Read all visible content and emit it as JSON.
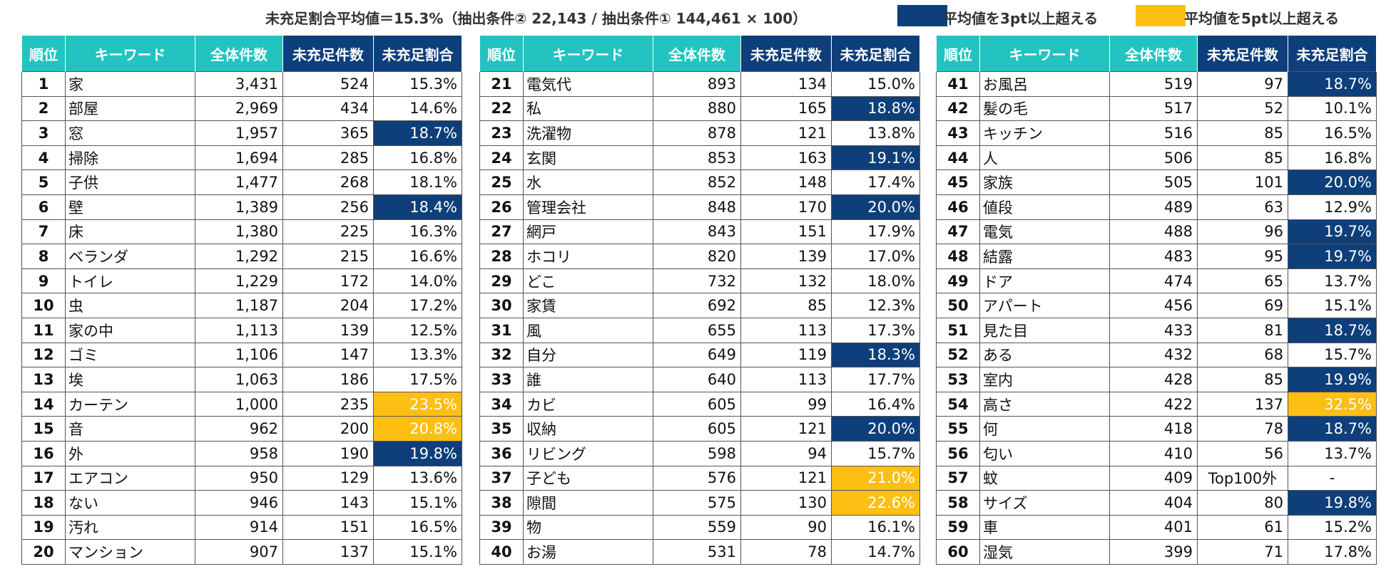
{
  "header": {
    "summary": "未充足割合平均値＝15.3%（抽出条件② 22,143 / 抽出条件① 144,461 × 100）",
    "legend": [
      {
        "label": "平均値を3pt以上超える",
        "color": "#0e3f7a"
      },
      {
        "label": "平均値を5pt以上超える",
        "color": "#fdbf13"
      }
    ]
  },
  "columns": [
    "順位",
    "キーワード",
    "全体件数",
    "未充足件数",
    "未充足割合"
  ],
  "tables": [
    {
      "rows": [
        {
          "rank": "1",
          "keyword": "家",
          "total": "3,431",
          "unmet": "524",
          "rate": "15.3%",
          "hl": ""
        },
        {
          "rank": "2",
          "keyword": "部屋",
          "total": "2,969",
          "unmet": "434",
          "rate": "14.6%",
          "hl": ""
        },
        {
          "rank": "3",
          "keyword": "窓",
          "total": "1,957",
          "unmet": "365",
          "rate": "18.7%",
          "hl": "blue"
        },
        {
          "rank": "4",
          "keyword": "掃除",
          "total": "1,694",
          "unmet": "285",
          "rate": "16.8%",
          "hl": ""
        },
        {
          "rank": "5",
          "keyword": "子供",
          "total": "1,477",
          "unmet": "268",
          "rate": "18.1%",
          "hl": ""
        },
        {
          "rank": "6",
          "keyword": "壁",
          "total": "1,389",
          "unmet": "256",
          "rate": "18.4%",
          "hl": "blue"
        },
        {
          "rank": "7",
          "keyword": "床",
          "total": "1,380",
          "unmet": "225",
          "rate": "16.3%",
          "hl": ""
        },
        {
          "rank": "8",
          "keyword": "ベランダ",
          "total": "1,292",
          "unmet": "215",
          "rate": "16.6%",
          "hl": ""
        },
        {
          "rank": "9",
          "keyword": "トイレ",
          "total": "1,229",
          "unmet": "172",
          "rate": "14.0%",
          "hl": ""
        },
        {
          "rank": "10",
          "keyword": "虫",
          "total": "1,187",
          "unmet": "204",
          "rate": "17.2%",
          "hl": ""
        },
        {
          "rank": "11",
          "keyword": "家の中",
          "total": "1,113",
          "unmet": "139",
          "rate": "12.5%",
          "hl": ""
        },
        {
          "rank": "12",
          "keyword": "ゴミ",
          "total": "1,106",
          "unmet": "147",
          "rate": "13.3%",
          "hl": ""
        },
        {
          "rank": "13",
          "keyword": "埃",
          "total": "1,063",
          "unmet": "186",
          "rate": "17.5%",
          "hl": ""
        },
        {
          "rank": "14",
          "keyword": "カーテン",
          "total": "1,000",
          "unmet": "235",
          "rate": "23.5%",
          "hl": "yellow"
        },
        {
          "rank": "15",
          "keyword": "音",
          "total": "962",
          "unmet": "200",
          "rate": "20.8%",
          "hl": "yellow"
        },
        {
          "rank": "16",
          "keyword": "外",
          "total": "958",
          "unmet": "190",
          "rate": "19.8%",
          "hl": "blue"
        },
        {
          "rank": "17",
          "keyword": "エアコン",
          "total": "950",
          "unmet": "129",
          "rate": "13.6%",
          "hl": ""
        },
        {
          "rank": "18",
          "keyword": "ない",
          "total": "946",
          "unmet": "143",
          "rate": "15.1%",
          "hl": ""
        },
        {
          "rank": "19",
          "keyword": "汚れ",
          "total": "914",
          "unmet": "151",
          "rate": "16.5%",
          "hl": ""
        },
        {
          "rank": "20",
          "keyword": "マンション",
          "total": "907",
          "unmet": "137",
          "rate": "15.1%",
          "hl": ""
        }
      ]
    },
    {
      "rows": [
        {
          "rank": "21",
          "keyword": "電気代",
          "total": "893",
          "unmet": "134",
          "rate": "15.0%",
          "hl": ""
        },
        {
          "rank": "22",
          "keyword": "私",
          "total": "880",
          "unmet": "165",
          "rate": "18.8%",
          "hl": "blue"
        },
        {
          "rank": "23",
          "keyword": "洗濯物",
          "total": "878",
          "unmet": "121",
          "rate": "13.8%",
          "hl": ""
        },
        {
          "rank": "24",
          "keyword": "玄関",
          "total": "853",
          "unmet": "163",
          "rate": "19.1%",
          "hl": "blue"
        },
        {
          "rank": "25",
          "keyword": "水",
          "total": "852",
          "unmet": "148",
          "rate": "17.4%",
          "hl": ""
        },
        {
          "rank": "26",
          "keyword": "管理会社",
          "total": "848",
          "unmet": "170",
          "rate": "20.0%",
          "hl": "blue"
        },
        {
          "rank": "27",
          "keyword": "網戸",
          "total": "843",
          "unmet": "151",
          "rate": "17.9%",
          "hl": ""
        },
        {
          "rank": "28",
          "keyword": "ホコリ",
          "total": "820",
          "unmet": "139",
          "rate": "17.0%",
          "hl": ""
        },
        {
          "rank": "29",
          "keyword": "どこ",
          "total": "732",
          "unmet": "132",
          "rate": "18.0%",
          "hl": ""
        },
        {
          "rank": "30",
          "keyword": "家賃",
          "total": "692",
          "unmet": "85",
          "rate": "12.3%",
          "hl": ""
        },
        {
          "rank": "31",
          "keyword": "風",
          "total": "655",
          "unmet": "113",
          "rate": "17.3%",
          "hl": ""
        },
        {
          "rank": "32",
          "keyword": "自分",
          "total": "649",
          "unmet": "119",
          "rate": "18.3%",
          "hl": "blue"
        },
        {
          "rank": "33",
          "keyword": "誰",
          "total": "640",
          "unmet": "113",
          "rate": "17.7%",
          "hl": ""
        },
        {
          "rank": "34",
          "keyword": "カビ",
          "total": "605",
          "unmet": "99",
          "rate": "16.4%",
          "hl": ""
        },
        {
          "rank": "35",
          "keyword": "収納",
          "total": "605",
          "unmet": "121",
          "rate": "20.0%",
          "hl": "blue"
        },
        {
          "rank": "36",
          "keyword": "リビング",
          "total": "598",
          "unmet": "94",
          "rate": "15.7%",
          "hl": ""
        },
        {
          "rank": "37",
          "keyword": "子ども",
          "total": "576",
          "unmet": "121",
          "rate": "21.0%",
          "hl": "yellow"
        },
        {
          "rank": "38",
          "keyword": "隙間",
          "total": "575",
          "unmet": "130",
          "rate": "22.6%",
          "hl": "yellow"
        },
        {
          "rank": "39",
          "keyword": "物",
          "total": "559",
          "unmet": "90",
          "rate": "16.1%",
          "hl": ""
        },
        {
          "rank": "40",
          "keyword": "お湯",
          "total": "531",
          "unmet": "78",
          "rate": "14.7%",
          "hl": ""
        }
      ]
    },
    {
      "rows": [
        {
          "rank": "41",
          "keyword": "お風呂",
          "total": "519",
          "unmet": "97",
          "rate": "18.7%",
          "hl": "blue"
        },
        {
          "rank": "42",
          "keyword": "髪の毛",
          "total": "517",
          "unmet": "52",
          "rate": "10.1%",
          "hl": ""
        },
        {
          "rank": "43",
          "keyword": "キッチン",
          "total": "516",
          "unmet": "85",
          "rate": "16.5%",
          "hl": ""
        },
        {
          "rank": "44",
          "keyword": "人",
          "total": "506",
          "unmet": "85",
          "rate": "16.8%",
          "hl": ""
        },
        {
          "rank": "45",
          "keyword": "家族",
          "total": "505",
          "unmet": "101",
          "rate": "20.0%",
          "hl": "blue"
        },
        {
          "rank": "46",
          "keyword": "値段",
          "total": "489",
          "unmet": "63",
          "rate": "12.9%",
          "hl": ""
        },
        {
          "rank": "47",
          "keyword": "電気",
          "total": "488",
          "unmet": "96",
          "rate": "19.7%",
          "hl": "blue"
        },
        {
          "rank": "48",
          "keyword": "結露",
          "total": "483",
          "unmet": "95",
          "rate": "19.7%",
          "hl": "blue"
        },
        {
          "rank": "49",
          "keyword": "ドア",
          "total": "474",
          "unmet": "65",
          "rate": "13.7%",
          "hl": ""
        },
        {
          "rank": "50",
          "keyword": "アパート",
          "total": "456",
          "unmet": "69",
          "rate": "15.1%",
          "hl": ""
        },
        {
          "rank": "51",
          "keyword": "見た目",
          "total": "433",
          "unmet": "81",
          "rate": "18.7%",
          "hl": "blue"
        },
        {
          "rank": "52",
          "keyword": "ある",
          "total": "432",
          "unmet": "68",
          "rate": "15.7%",
          "hl": ""
        },
        {
          "rank": "53",
          "keyword": "室内",
          "total": "428",
          "unmet": "85",
          "rate": "19.9%",
          "hl": "blue"
        },
        {
          "rank": "54",
          "keyword": "高さ",
          "total": "422",
          "unmet": "137",
          "rate": "32.5%",
          "hl": "yellow"
        },
        {
          "rank": "55",
          "keyword": "何",
          "total": "418",
          "unmet": "78",
          "rate": "18.7%",
          "hl": "blue"
        },
        {
          "rank": "56",
          "keyword": "匂い",
          "total": "410",
          "unmet": "56",
          "rate": "13.7%",
          "hl": ""
        },
        {
          "rank": "57",
          "keyword": "蚊",
          "total": "409",
          "unmet": "Top100外",
          "rate": "-",
          "hl": "",
          "special": true
        },
        {
          "rank": "58",
          "keyword": "サイズ",
          "total": "404",
          "unmet": "80",
          "rate": "19.8%",
          "hl": "blue"
        },
        {
          "rank": "59",
          "keyword": "車",
          "total": "401",
          "unmet": "61",
          "rate": "15.2%",
          "hl": ""
        },
        {
          "rank": "60",
          "keyword": "湿気",
          "total": "399",
          "unmet": "71",
          "rate": "17.8%",
          "hl": ""
        }
      ]
    }
  ]
}
